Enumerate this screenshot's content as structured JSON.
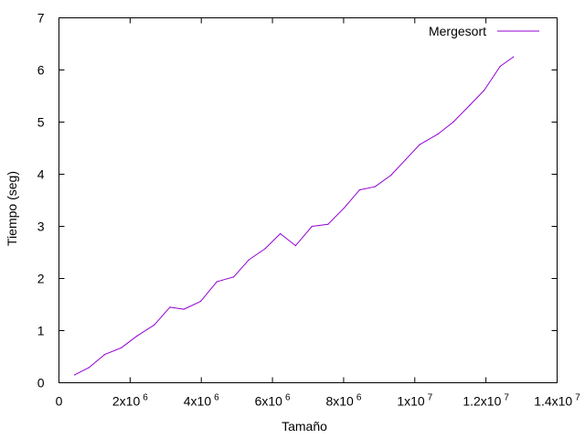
{
  "chart_data": {
    "type": "line",
    "title": "",
    "xlabel": "Tamaño",
    "ylabel": "Tiempo (seg)",
    "xlim": [
      0,
      14000000
    ],
    "ylim": [
      0,
      7
    ],
    "grid": false,
    "legend_position": "top-right",
    "x_ticks": [
      {
        "value": 0,
        "base": "0",
        "exp": ""
      },
      {
        "value": 2000000,
        "base": "2x10",
        "exp": "6"
      },
      {
        "value": 4000000,
        "base": "4x10",
        "exp": "6"
      },
      {
        "value": 6000000,
        "base": "6x10",
        "exp": "6"
      },
      {
        "value": 8000000,
        "base": "8x10",
        "exp": "6"
      },
      {
        "value": 10000000,
        "base": "1x10",
        "exp": "7"
      },
      {
        "value": 12000000,
        "base": "1.2x10",
        "exp": "7"
      },
      {
        "value": 14000000,
        "base": "1.4x10",
        "exp": "7"
      }
    ],
    "y_ticks": [
      {
        "value": 0,
        "label": "0"
      },
      {
        "value": 1,
        "label": "1"
      },
      {
        "value": 2,
        "label": "2"
      },
      {
        "value": 3,
        "label": "3"
      },
      {
        "value": 4,
        "label": "4"
      },
      {
        "value": 5,
        "label": "5"
      },
      {
        "value": 6,
        "label": "6"
      },
      {
        "value": 7,
        "label": "7"
      }
    ],
    "series": [
      {
        "name": "Mergesort",
        "color": "#9400d3",
        "x": [
          440000,
          840000,
          1280000,
          1750000,
          2200000,
          2680000,
          3120000,
          3510000,
          3980000,
          4440000,
          4910000,
          5340000,
          5790000,
          6220000,
          6650000,
          7110000,
          7560000,
          8010000,
          8450000,
          8880000,
          9330000,
          9740000,
          10140000,
          10650000,
          11080000,
          11540000,
          11950000,
          12400000,
          12770000
        ],
        "y": [
          0.15,
          0.29,
          0.54,
          0.67,
          0.9,
          1.11,
          1.45,
          1.41,
          1.56,
          1.94,
          2.03,
          2.36,
          2.57,
          2.86,
          2.63,
          3.0,
          3.04,
          3.35,
          3.7,
          3.76,
          3.98,
          4.28,
          4.57,
          4.77,
          5.0,
          5.32,
          5.61,
          6.07,
          6.25
        ]
      }
    ]
  }
}
